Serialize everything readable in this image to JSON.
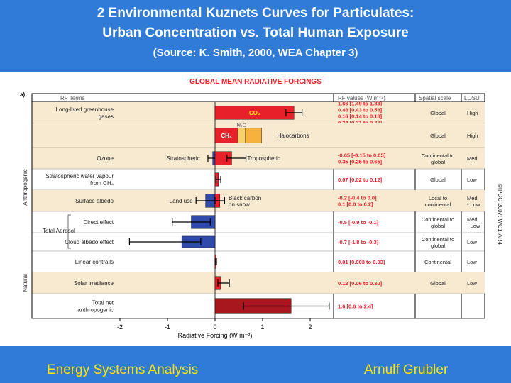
{
  "slide": {
    "title_line1": "2 Environmental Kuznets Curves for Particulates:",
    "title_line2": "Urban Concentration vs. Total Human Exposure",
    "source": "(Source: K. Smith, 2000, WEA Chapter 3)",
    "footer_left": "Energy Systems Analysis",
    "footer_right": "Arnulf Grubler"
  },
  "chart_data": {
    "type": "bar",
    "title": "GLOBAL MEAN RADIATIVE FORCINGS",
    "panel_label": "a)",
    "xlabel": "Radiative Forcing (W m⁻²)",
    "xlim": [
      -2.3,
      2.9
    ],
    "xticks": [
      -2,
      -1,
      0,
      1,
      2
    ],
    "copyright": "©IPCC 2007: WG1-AR4",
    "headers": {
      "rf_terms": "RF Terms",
      "rf_values": "RF values (W m⁻²)",
      "spatial_scale": "Spatial scale",
      "losu": "LOSU"
    },
    "groups": [
      {
        "label": "Anthropogenic",
        "rows": [
          0,
          10
        ]
      },
      {
        "label": "Natural",
        "rows": [
          11,
          11
        ]
      }
    ],
    "rows": [
      {
        "label": "Long-lived greenhouse gases",
        "values": [
          "1.66 [1.49 to 1.83]",
          "0.48 [0.43 to 0.53]",
          "0.16 [0.14 to 0.18]",
          "0.34 [0.31 to 0.37]"
        ],
        "scale": "Global",
        "losu": "High",
        "shade": true
      },
      {
        "label": "",
        "values": [],
        "scale": "Global",
        "losu": "High",
        "shade": true
      },
      {
        "label": "Ozone",
        "values": [
          "-0.05 [-0.15 to 0.05]",
          "0.35 [0.25 to 0.65]"
        ],
        "scale": "Continental to global",
        "losu": "Med",
        "shade": true
      },
      {
        "label": "Stratospheric water vapour from CH₄",
        "values": [
          "0.07 [0.02 to 0.12]"
        ],
        "scale": "Global",
        "losu": "Low",
        "shade": false
      },
      {
        "label": "Surface albedo",
        "values": [
          "-0.2 [-0.4 to 0.0]",
          "0.1 [0.0 to 0.2]"
        ],
        "scale": "Local to continental",
        "losu": "Med - Low",
        "shade": true
      },
      {
        "label": "Direct effect",
        "values": [
          "-0.5 [-0.9 to -0.1]"
        ],
        "scale": "Continental to global",
        "losu": "Med - Low",
        "shade": false
      },
      {
        "label": "Cloud albedo effect",
        "values": [
          "-0.7 [-1.8 to -0.3]"
        ],
        "scale": "Continental to global",
        "losu": "Low",
        "shade": false
      },
      {
        "label": "Linear contrails",
        "values": [
          "0.01 [0.003 to 0.03]"
        ],
        "scale": "Continental",
        "losu": "Low",
        "shade": false
      },
      {
        "label": "Solar irradiance",
        "values": [
          "0.12 [0.06 to 0.30]"
        ],
        "scale": "Global",
        "losu": "Low",
        "shade": true
      },
      {
        "label": "Total net anthropogenic",
        "values": [
          "1.6 [0.6 to 2.4]"
        ],
        "scale": "",
        "losu": "",
        "shade": false
      }
    ],
    "aerosol_label": "Total Aerosol",
    "bars": [
      {
        "name": "CO₂",
        "row": 0,
        "start": 0,
        "value": 1.66,
        "lo": 1.49,
        "hi": 1.83,
        "color": "#e8202a",
        "label_inside": true,
        "label_color": "#ffe400"
      },
      {
        "name": "CH₄",
        "row": 1,
        "start": 0,
        "value": 0.48,
        "color": "#e8202a",
        "label_inside": true,
        "label_color": "#ffffff"
      },
      {
        "name": "N₂O",
        "row": 1,
        "start": 0.48,
        "value": 0.16,
        "color": "#f8d16a",
        "label_above": true
      },
      {
        "name": "Halocarbons",
        "row": 1,
        "start": 0.64,
        "value": 0.34,
        "color": "#f6b23c",
        "label_right": true
      },
      {
        "name": "Stratospheric",
        "row": 2,
        "start": 0,
        "value": -0.05,
        "lo": -0.15,
        "hi": 0.05,
        "color": "#2f4aa8",
        "label_left": true
      },
      {
        "name": "Tropospheric",
        "row": 2,
        "start": 0,
        "value": 0.35,
        "lo": 0.25,
        "hi": 0.65,
        "color": "#e8202a",
        "label_right": true
      },
      {
        "name": "",
        "row": 3,
        "start": 0,
        "value": 0.07,
        "lo": 0.02,
        "hi": 0.12,
        "color": "#e8202a"
      },
      {
        "name": "Land use",
        "row": 4,
        "start": 0,
        "value": -0.2,
        "lo": -0.4,
        "hi": 0.0,
        "color": "#2f4aa8",
        "label_left": true
      },
      {
        "name": "Black carbon on snow",
        "row": 4,
        "start": 0,
        "value": 0.1,
        "lo": 0.0,
        "hi": 0.2,
        "color": "#e8202a",
        "label_right": true
      },
      {
        "name": "",
        "row": 5,
        "start": 0,
        "value": -0.5,
        "lo": -0.9,
        "hi": -0.1,
        "color": "#2f4aa8"
      },
      {
        "name": "",
        "row": 6,
        "start": 0,
        "value": -0.7,
        "lo": -1.8,
        "hi": -0.3,
        "color": "#2f4aa8"
      },
      {
        "name": "",
        "row": 7,
        "start": 0,
        "value": 0.01,
        "lo": 0.003,
        "hi": 0.03,
        "color": "#e8202a"
      },
      {
        "name": "",
        "row": 8,
        "start": 0,
        "value": 0.12,
        "lo": 0.06,
        "hi": 0.3,
        "color": "#e8202a"
      },
      {
        "name": "",
        "row": 9,
        "start": 0,
        "value": 1.6,
        "lo": 0.6,
        "hi": 2.4,
        "color": "#a8161e"
      }
    ],
    "colors": {
      "positive": "#e8202a",
      "negative": "#2f4aa8",
      "total": "#a8161e",
      "shade": "#f8ead0",
      "value_text": "#e8202a",
      "title": "#e8202a"
    }
  }
}
